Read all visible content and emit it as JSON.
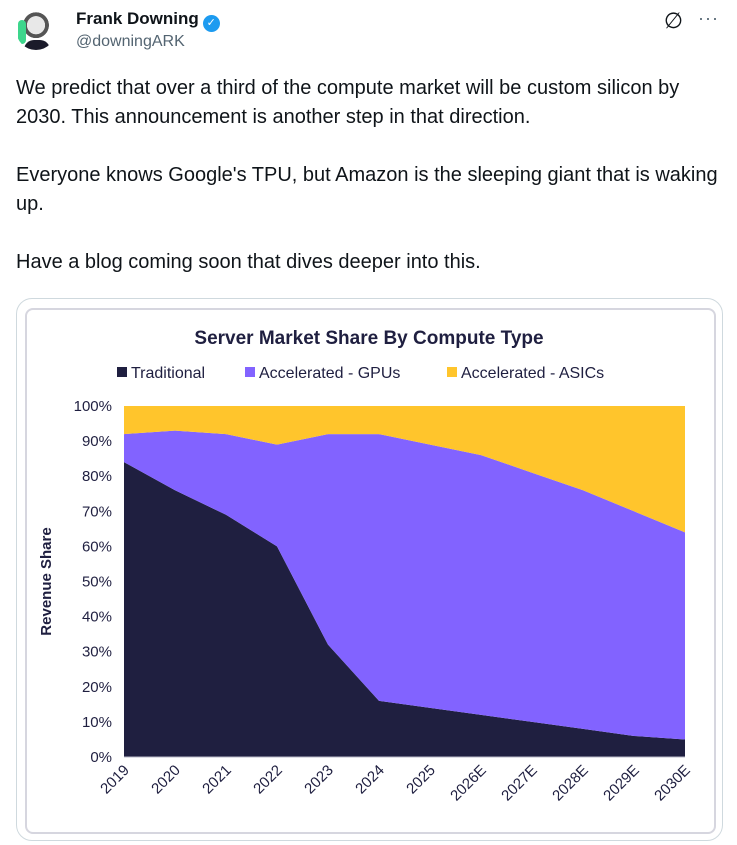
{
  "post": {
    "author_name": "Frank Downing",
    "handle": "@downingARK",
    "verified_icon": "verified-badge-icon",
    "grok_icon": "grok-icon",
    "more_icon": "more-icon",
    "paragraphs": [
      "We predict that over a third of the compute market will be custom silicon by 2030. This announcement is another step in that direction.",
      "Everyone knows Google's TPU, but Amazon is the sleeping giant that is waking up.",
      "Have a blog coming soon that dives deeper into this."
    ]
  },
  "chart_data": {
    "type": "area",
    "stacked": true,
    "title": "Server Market Share By Compute Type",
    "xlabel": "",
    "ylabel": "Revenue Share",
    "ylim": [
      0,
      100
    ],
    "yticks": [
      "0%",
      "10%",
      "20%",
      "30%",
      "40%",
      "50%",
      "60%",
      "70%",
      "80%",
      "90%",
      "100%"
    ],
    "categories": [
      "2019",
      "2020",
      "2021",
      "2022",
      "2023",
      "2024",
      "2025",
      "2026E",
      "2027E",
      "2028E",
      "2029E",
      "2030E"
    ],
    "legend_position": "top",
    "grid": false,
    "series": [
      {
        "name": "Traditional",
        "color": "#1f1f40",
        "values": [
          84,
          76,
          69,
          60,
          32,
          16,
          14,
          12,
          10,
          8,
          6,
          5
        ]
      },
      {
        "name": "Accelerated - GPUs",
        "color": "#8263ff",
        "values": [
          8,
          17,
          23,
          29,
          60,
          76,
          75,
          74,
          71,
          68,
          64,
          59
        ]
      },
      {
        "name": "Accelerated - ASICs",
        "color": "#ffc52c",
        "values": [
          8,
          7,
          8,
          11,
          8,
          8,
          11,
          14,
          19,
          24,
          30,
          36
        ]
      }
    ]
  }
}
